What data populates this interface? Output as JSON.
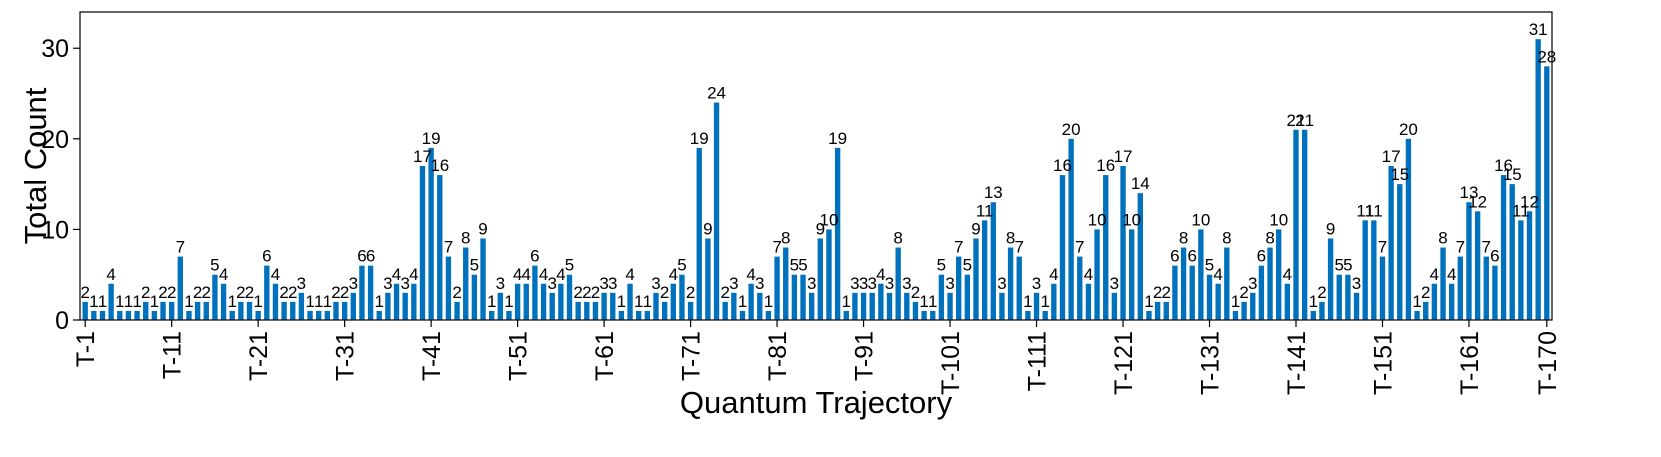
{
  "chart_data": {
    "type": "bar",
    "title": "",
    "xlabel": "Quantum Trajectory",
    "ylabel": "Total Count",
    "ylim": [
      0,
      34
    ],
    "yticks": [
      0,
      10,
      20,
      30
    ],
    "xtick_every": 10,
    "xtick_extra": [
      "T-170"
    ],
    "bar_color": "#0072bd",
    "grid": false,
    "legend": "none",
    "categories": [
      "T-1",
      "T-2",
      "T-3",
      "T-4",
      "T-5",
      "T-6",
      "T-7",
      "T-8",
      "T-9",
      "T-10",
      "T-11",
      "T-12",
      "T-13",
      "T-14",
      "T-15",
      "T-16",
      "T-17",
      "T-18",
      "T-19",
      "T-20",
      "T-21",
      "T-22",
      "T-23",
      "T-24",
      "T-25",
      "T-26",
      "T-27",
      "T-28",
      "T-29",
      "T-30",
      "T-31",
      "T-32",
      "T-33",
      "T-34",
      "T-35",
      "T-36",
      "T-37",
      "T-38",
      "T-39",
      "T-40",
      "T-41",
      "T-42",
      "T-43",
      "T-44",
      "T-45",
      "T-46",
      "T-47",
      "T-48",
      "T-49",
      "T-50",
      "T-51",
      "T-52",
      "T-53",
      "T-54",
      "T-55",
      "T-56",
      "T-57",
      "T-58",
      "T-59",
      "T-60",
      "T-61",
      "T-62",
      "T-63",
      "T-64",
      "T-65",
      "T-66",
      "T-67",
      "T-68",
      "T-69",
      "T-70",
      "T-71",
      "T-72",
      "T-73",
      "T-74",
      "T-75",
      "T-76",
      "T-77",
      "T-78",
      "T-79",
      "T-80",
      "T-81",
      "T-82",
      "T-83",
      "T-84",
      "T-85",
      "T-86",
      "T-87",
      "T-88",
      "T-89",
      "T-90",
      "T-91",
      "T-92",
      "T-93",
      "T-94",
      "T-95",
      "T-96",
      "T-97",
      "T-98",
      "T-99",
      "T-100",
      "T-101",
      "T-102",
      "T-103",
      "T-104",
      "T-105",
      "T-106",
      "T-107",
      "T-108",
      "T-109",
      "T-110",
      "T-111",
      "T-112",
      "T-113",
      "T-114",
      "T-115",
      "T-116",
      "T-117",
      "T-118",
      "T-119",
      "T-120",
      "T-121",
      "T-122",
      "T-123",
      "T-124",
      "T-125",
      "T-126",
      "T-127",
      "T-128",
      "T-129",
      "T-130",
      "T-131",
      "T-132",
      "T-133",
      "T-134",
      "T-135",
      "T-136",
      "T-137",
      "T-138",
      "T-139",
      "T-140",
      "T-141",
      "T-142",
      "T-143",
      "T-144",
      "T-145",
      "T-146",
      "T-147",
      "T-148",
      "T-149",
      "T-150",
      "T-151",
      "T-152",
      "T-153",
      "T-154",
      "T-155",
      "T-156",
      "T-157",
      "T-158",
      "T-159",
      "T-160",
      "T-161",
      "T-162",
      "T-163",
      "T-164",
      "T-165",
      "T-166",
      "T-167",
      "T-168",
      "T-169",
      "T-170"
    ],
    "values": [
      2,
      1,
      1,
      4,
      1,
      1,
      1,
      2,
      1,
      2,
      2,
      7,
      1,
      2,
      2,
      5,
      4,
      1,
      2,
      2,
      1,
      6,
      4,
      2,
      2,
      3,
      1,
      1,
      1,
      2,
      2,
      3,
      6,
      6,
      1,
      3,
      4,
      3,
      4,
      17,
      19,
      16,
      7,
      2,
      8,
      5,
      9,
      1,
      3,
      1,
      4,
      4,
      6,
      4,
      3,
      4,
      5,
      2,
      2,
      2,
      3,
      3,
      1,
      4,
      1,
      1,
      3,
      2,
      4,
      5,
      2,
      19,
      9,
      24,
      2,
      3,
      1,
      4,
      3,
      1,
      7,
      8,
      5,
      5,
      3,
      9,
      10,
      19,
      1,
      3,
      3,
      3,
      4,
      3,
      8,
      3,
      2,
      1,
      1,
      5,
      3,
      7,
      5,
      9,
      11,
      13,
      3,
      8,
      7,
      1,
      3,
      1,
      4,
      16,
      20,
      7,
      4,
      10,
      16,
      3,
      17,
      10,
      14,
      1,
      2,
      2,
      6,
      8,
      6,
      10,
      5,
      4,
      8,
      1,
      2,
      3,
      6,
      8,
      10,
      4,
      21,
      21,
      1,
      2,
      9,
      5,
      5,
      3,
      11,
      11,
      7,
      17,
      15,
      20,
      1,
      2,
      4,
      8,
      4,
      7,
      13,
      12,
      7,
      6,
      16,
      15,
      11,
      12,
      31,
      28
    ]
  }
}
